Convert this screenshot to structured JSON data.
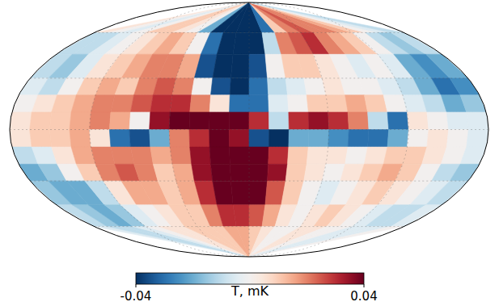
{
  "chart_data": {
    "type": "heatmap",
    "color": "RdBu_r",
    "grid": true,
    "lon_edges": [
      180,
      165,
      150,
      135,
      120,
      105,
      90,
      75,
      60,
      45,
      30,
      15,
      0,
      -15,
      -30,
      -45,
      -60,
      -75,
      -90,
      -105,
      -120,
      -135,
      -150,
      -165,
      -180
    ],
    "lat_edges": [
      90,
      60,
      45,
      30,
      20,
      10,
      0,
      -10,
      -20,
      -30,
      -45,
      -60,
      -90
    ],
    "values": [
      [
        0.005,
        0.0,
        -0.005,
        0.0,
        0.01,
        0.01,
        0.005,
        0.0,
        -0.02,
        -0.04,
        -0.04,
        -0.04,
        -0.04,
        -0.03,
        0.01,
        0.02,
        0.025,
        0.02,
        0.02,
        0.015,
        0.01,
        0.0,
        -0.005,
        -0.01
      ],
      [
        -0.01,
        -0.01,
        -0.005,
        0.0,
        0.005,
        0.01,
        0.015,
        0.01,
        0.0,
        -0.03,
        -0.04,
        -0.04,
        -0.04,
        -0.01,
        0.02,
        0.025,
        0.03,
        0.02,
        0.015,
        0.01,
        0.0,
        -0.01,
        -0.015,
        -0.01
      ],
      [
        -0.01,
        -0.015,
        -0.005,
        0.005,
        0.01,
        0.015,
        0.02,
        0.02,
        0.015,
        -0.035,
        -0.04,
        -0.04,
        -0.035,
        0.0,
        0.01,
        0.01,
        0.005,
        0.0,
        -0.005,
        0.0,
        -0.005,
        -0.02,
        -0.025,
        -0.02
      ],
      [
        -0.005,
        -0.01,
        0.0,
        0.01,
        0.015,
        0.01,
        0.02,
        0.025,
        0.02,
        0.0,
        -0.035,
        -0.04,
        -0.03,
        -0.01,
        -0.005,
        0.0,
        0.005,
        0.0,
        0.0,
        -0.005,
        -0.01,
        -0.02,
        -0.03,
        -0.025
      ],
      [
        0.0,
        0.005,
        0.01,
        0.015,
        0.02,
        0.02,
        0.025,
        0.03,
        0.03,
        0.02,
        0.005,
        -0.03,
        -0.03,
        -0.005,
        0.0,
        0.01,
        0.01,
        0.015,
        0.01,
        0.0,
        -0.005,
        -0.01,
        -0.02,
        -0.015
      ],
      [
        0.005,
        0.01,
        0.01,
        0.015,
        0.02,
        0.015,
        0.0,
        0.035,
        0.04,
        0.04,
        0.04,
        0.04,
        0.03,
        -0.01,
        0.03,
        0.035,
        0.03,
        0.02,
        -0.01,
        -0.03,
        0.005,
        0.0,
        -0.005,
        -0.005
      ],
      [
        0.005,
        0.01,
        0.01,
        0.015,
        0.005,
        -0.03,
        -0.035,
        -0.02,
        0.02,
        0.03,
        0.04,
        0.035,
        -0.035,
        -0.04,
        -0.02,
        -0.02,
        -0.025,
        -0.03,
        -0.03,
        -0.02,
        0.0,
        0.005,
        0.0,
        -0.005
      ],
      [
        -0.01,
        -0.005,
        0.005,
        0.015,
        0.02,
        0.02,
        0.02,
        0.015,
        0.02,
        0.035,
        0.04,
        0.04,
        0.04,
        0.03,
        0.01,
        0.005,
        0.005,
        0.0,
        0.005,
        0.01,
        0.01,
        0.005,
        0.0,
        -0.005
      ],
      [
        -0.02,
        -0.015,
        0.0,
        0.01,
        0.02,
        0.025,
        0.02,
        0.01,
        0.015,
        0.035,
        0.04,
        0.04,
        0.04,
        0.035,
        0.01,
        0.005,
        0.0,
        0.005,
        0.01,
        0.015,
        0.01,
        0.0,
        -0.01,
        -0.015
      ],
      [
        -0.015,
        -0.02,
        -0.02,
        -0.01,
        0.005,
        0.015,
        0.015,
        0.01,
        0.015,
        0.03,
        0.04,
        0.04,
        0.04,
        0.025,
        0.01,
        0.0,
        -0.005,
        0.0,
        0.005,
        0.01,
        0.005,
        0.0,
        -0.005,
        -0.01
      ],
      [
        -0.01,
        -0.015,
        -0.02,
        -0.015,
        -0.005,
        0.0,
        0.005,
        0.01,
        0.01,
        0.02,
        0.03,
        0.03,
        0.025,
        0.015,
        0.005,
        0.0,
        0.005,
        0.01,
        0.005,
        0.0,
        -0.005,
        -0.01,
        -0.01,
        -0.005
      ],
      [
        -0.005,
        -0.01,
        -0.01,
        -0.005,
        0.0,
        0.005,
        0.005,
        0.01,
        0.01,
        0.01,
        0.015,
        0.015,
        0.01,
        0.005,
        0.0,
        0.0,
        0.005,
        0.005,
        0.0,
        0.0,
        -0.005,
        -0.005,
        -0.005,
        0.0
      ]
    ],
    "colorbar_label": "T, mK",
    "colorbar_range": [
      -0.04,
      0.04
    ],
    "colorbar_ticks": [
      -0.04,
      0.04
    ]
  }
}
